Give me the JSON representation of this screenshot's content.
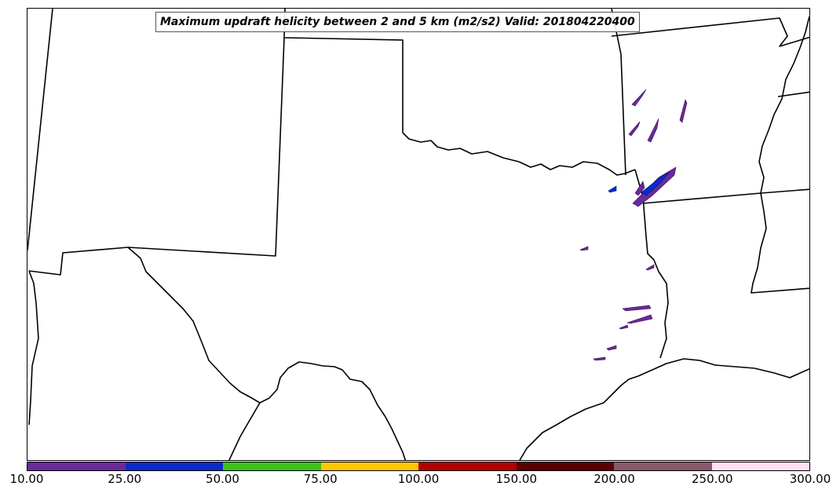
{
  "title": "Maximum updraft helicity between 2 and 5 km (m2/s2) Valid: 201804220400",
  "colorbar": {
    "colors": [
      "#6a2a9a",
      "#0a2bcc",
      "#3cc21a",
      "#ffc800",
      "#b40000",
      "#5a0000",
      "#8a5a6a",
      "#ffe0f5"
    ],
    "tick_labels": [
      "10.00",
      "25.00",
      "50.00",
      "75.00",
      "100.00",
      "150.00",
      "200.00",
      "250.00",
      "300.00"
    ]
  },
  "helicity_swath_colors": {
    "low": "#6a2a9a",
    "mid": "#0a2bcc"
  }
}
